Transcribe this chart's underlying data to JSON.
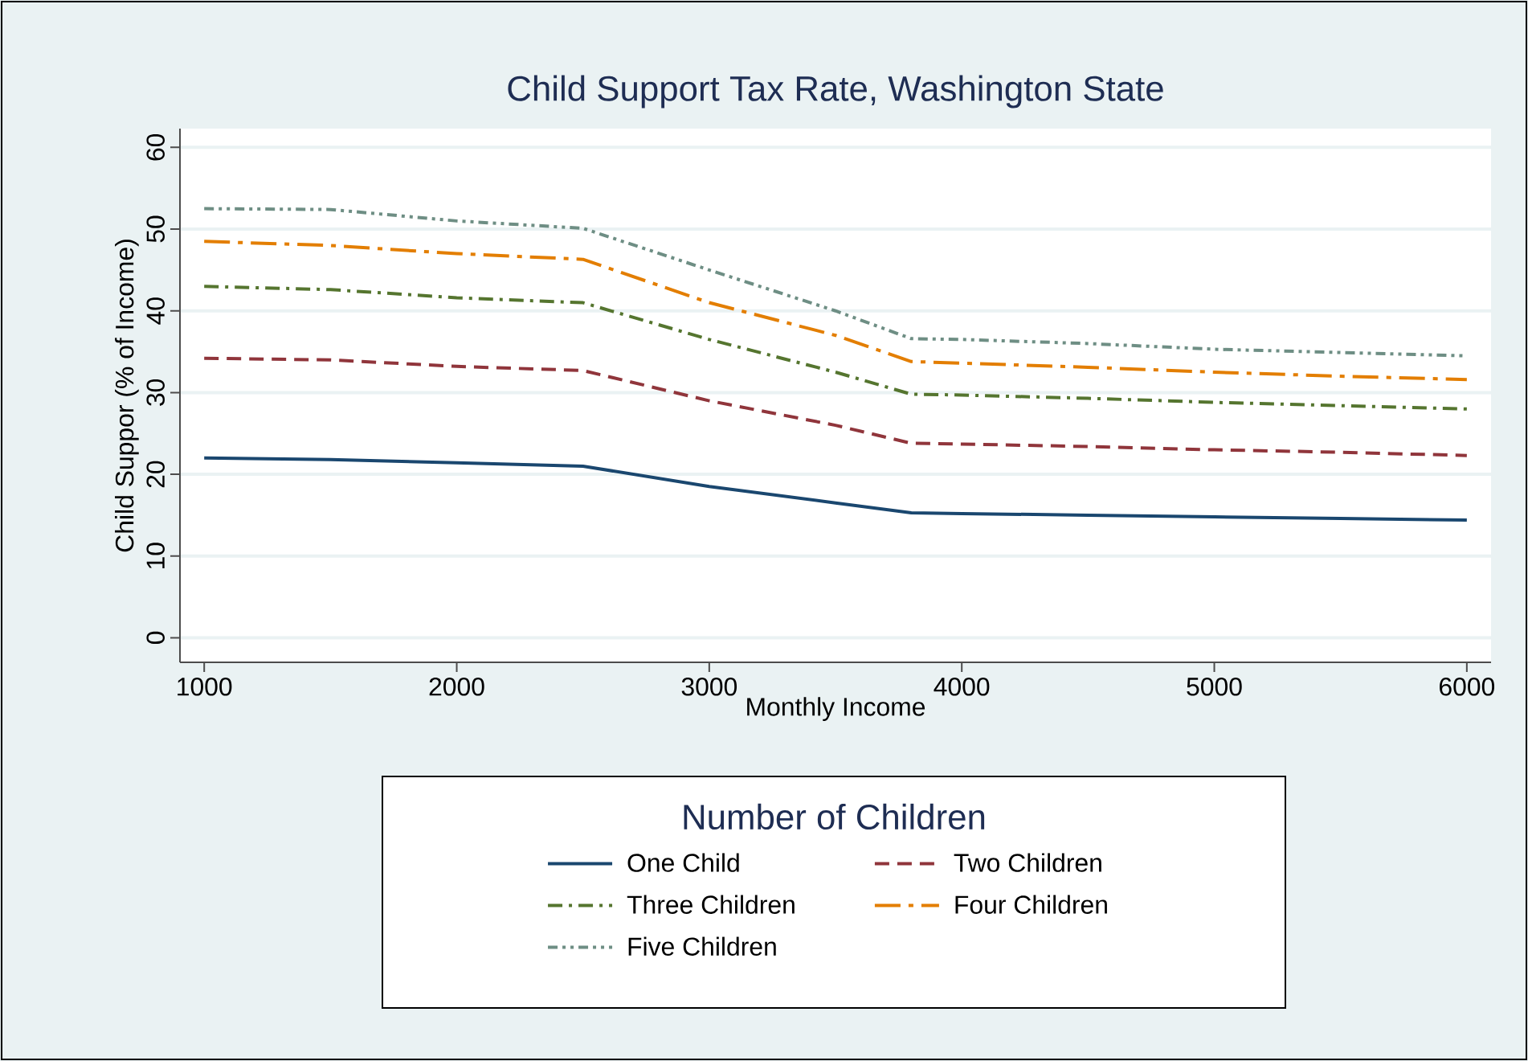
{
  "chart_data": {
    "type": "line",
    "title": "Child Support Tax Rate, Washington State",
    "xlabel": "Monthly Income",
    "ylabel": "Child Suppor (% of Income)",
    "legend_title": "Number of Children",
    "xlim": [
      904,
      6096
    ],
    "ylim": [
      -3,
      62.3
    ],
    "xticks": [
      1000,
      2000,
      3000,
      4000,
      5000,
      6000
    ],
    "yticks": [
      0,
      10,
      20,
      30,
      40,
      50,
      60
    ],
    "grid": "y",
    "legend": "bottom",
    "x": [
      1000,
      1500,
      2000,
      2500,
      3000,
      3500,
      3800,
      4000,
      4500,
      5000,
      5500,
      6000
    ],
    "series": [
      {
        "name": "One Child",
        "color": "#1a476f",
        "line_style": "solid",
        "values": [
          22,
          21.8,
          21.4,
          21,
          18.5,
          16.5,
          15.3,
          15.2,
          15,
          14.8,
          14.6,
          14.4
        ]
      },
      {
        "name": "Two Children",
        "color": "#90353b",
        "line_style": "dashed",
        "values": [
          34.2,
          34,
          33.2,
          32.7,
          29,
          26,
          23.8,
          23.7,
          23.4,
          23,
          22.7,
          22.3
        ]
      },
      {
        "name": "Three Children",
        "color": "#55752f",
        "line_style": "dashdot",
        "values": [
          43,
          42.6,
          41.6,
          41,
          36.5,
          32.5,
          29.8,
          29.7,
          29.3,
          28.8,
          28.4,
          28
        ]
      },
      {
        "name": "Four Children",
        "color": "#e37e00",
        "line_style": "longdashdot",
        "values": [
          48.5,
          48,
          47,
          46.3,
          41,
          37,
          33.8,
          33.6,
          33.1,
          32.5,
          32,
          31.6
        ]
      },
      {
        "name": "Five Children",
        "color": "#6e8e84",
        "line_style": "dashdotdot",
        "values": [
          52.5,
          52.4,
          51,
          50.1,
          45,
          40,
          36.6,
          36.5,
          36,
          35.3,
          34.9,
          34.5
        ]
      }
    ]
  }
}
